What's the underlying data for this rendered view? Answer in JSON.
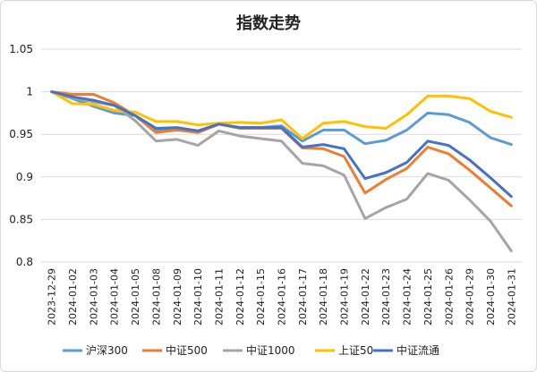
{
  "chart_data": {
    "type": "line",
    "title": "指数走势",
    "xlabel": "",
    "ylabel": "",
    "ylim": [
      0.8,
      1.05
    ],
    "yticks": [
      "0.8",
      "0.85",
      "0.9",
      "0.95",
      "1",
      "1.05"
    ],
    "ytick_values": [
      0.8,
      0.85,
      0.9,
      0.95,
      1.0,
      1.05
    ],
    "grid": true,
    "legend_position": "bottom",
    "categories": [
      "2023-12-29",
      "2024-01-02",
      "2024-01-03",
      "2024-01-04",
      "2024-01-05",
      "2024-01-08",
      "2024-01-09",
      "2024-01-10",
      "2024-01-11",
      "2024-01-12",
      "2024-01-15",
      "2024-01-16",
      "2024-01-17",
      "2024-01-18",
      "2024-01-19",
      "2024-01-22",
      "2024-01-23",
      "2024-01-24",
      "2024-01-25",
      "2024-01-26",
      "2024-01-29",
      "2024-01-30",
      "2024-01-31"
    ],
    "series": [
      {
        "name": "沪深300",
        "color": "#5B9BD5",
        "values": [
          1.0,
          0.992,
          0.983,
          0.975,
          0.972,
          0.955,
          0.957,
          0.954,
          0.962,
          0.958,
          0.958,
          0.96,
          0.942,
          0.955,
          0.955,
          0.939,
          0.943,
          0.955,
          0.975,
          0.973,
          0.964,
          0.946,
          0.938
        ]
      },
      {
        "name": "中证500",
        "color": "#ED7D31",
        "values": [
          1.0,
          0.997,
          0.997,
          0.987,
          0.972,
          0.952,
          0.955,
          0.952,
          0.962,
          0.957,
          0.957,
          0.957,
          0.934,
          0.933,
          0.924,
          0.881,
          0.897,
          0.91,
          0.935,
          0.927,
          0.908,
          0.887,
          0.866
        ]
      },
      {
        "name": "中证1000",
        "color": "#A5A5A5",
        "values": [
          1.0,
          0.993,
          0.988,
          0.984,
          0.966,
          0.942,
          0.944,
          0.937,
          0.954,
          0.948,
          0.945,
          0.942,
          0.916,
          0.913,
          0.902,
          0.851,
          0.864,
          0.874,
          0.904,
          0.896,
          0.873,
          0.848,
          0.813
        ]
      },
      {
        "name": "上证50",
        "color": "#FFC000",
        "values": [
          1.0,
          0.986,
          0.985,
          0.978,
          0.976,
          0.965,
          0.965,
          0.961,
          0.963,
          0.964,
          0.963,
          0.967,
          0.945,
          0.963,
          0.965,
          0.959,
          0.957,
          0.973,
          0.995,
          0.995,
          0.992,
          0.977,
          0.97
        ]
      },
      {
        "name": "中证流通",
        "color": "#4472C4",
        "values": [
          1.0,
          0.994,
          0.99,
          0.984,
          0.972,
          0.957,
          0.958,
          0.954,
          0.962,
          0.958,
          0.958,
          0.958,
          0.935,
          0.938,
          0.933,
          0.898,
          0.905,
          0.917,
          0.942,
          0.937,
          0.92,
          0.899,
          0.877
        ]
      }
    ]
  }
}
